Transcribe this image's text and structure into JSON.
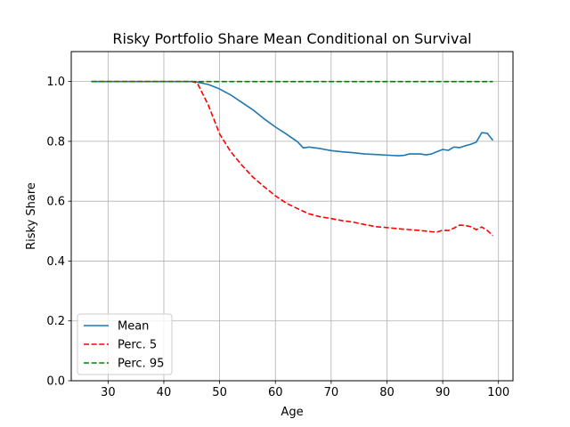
{
  "chart_data": {
    "type": "line",
    "title": "Risky Portfolio Share Mean Conditional on Survival",
    "xlabel": "Age",
    "ylabel": "Risky Share",
    "xlim": [
      23.4,
      102.6
    ],
    "ylim": [
      0.0,
      1.1
    ],
    "xticks": [
      30,
      40,
      50,
      60,
      70,
      80,
      90,
      100
    ],
    "yticks": [
      0.0,
      0.2,
      0.4,
      0.6,
      0.8,
      1.0
    ],
    "ytick_labels": [
      "0.0",
      "0.2",
      "0.4",
      "0.6",
      "0.8",
      "1.0"
    ],
    "grid": true,
    "legend_position": "lower-left",
    "series": [
      {
        "name": "Mean",
        "color": "#1f77b4",
        "dash": "solid",
        "points": [
          [
            27,
            1.0
          ],
          [
            30,
            1.0
          ],
          [
            35,
            1.0
          ],
          [
            40,
            1.0
          ],
          [
            45,
            1.0
          ],
          [
            46,
            0.998
          ],
          [
            48,
            0.99
          ],
          [
            50,
            0.975
          ],
          [
            52,
            0.955
          ],
          [
            54,
            0.93
          ],
          [
            56,
            0.905
          ],
          [
            58,
            0.875
          ],
          [
            60,
            0.848
          ],
          [
            62,
            0.824
          ],
          [
            64,
            0.798
          ],
          [
            65,
            0.778
          ],
          [
            66,
            0.781
          ],
          [
            68,
            0.776
          ],
          [
            70,
            0.769
          ],
          [
            72,
            0.765
          ],
          [
            74,
            0.762
          ],
          [
            76,
            0.758
          ],
          [
            78,
            0.756
          ],
          [
            80,
            0.754
          ],
          [
            82,
            0.752
          ],
          [
            83,
            0.753
          ],
          [
            84,
            0.758
          ],
          [
            86,
            0.758
          ],
          [
            87,
            0.755
          ],
          [
            88,
            0.758
          ],
          [
            89,
            0.766
          ],
          [
            90,
            0.773
          ],
          [
            91,
            0.77
          ],
          [
            92,
            0.781
          ],
          [
            93,
            0.779
          ],
          [
            94,
            0.785
          ],
          [
            95,
            0.79
          ],
          [
            96,
            0.797
          ],
          [
            97,
            0.829
          ],
          [
            98,
            0.827
          ],
          [
            99,
            0.803
          ]
        ]
      },
      {
        "name": "Perc. 5",
        "color": "#ff0000",
        "dash": "dashed",
        "points": [
          [
            27,
            1.0
          ],
          [
            30,
            1.0
          ],
          [
            35,
            1.0
          ],
          [
            40,
            1.0
          ],
          [
            45,
            1.0
          ],
          [
            46,
            0.995
          ],
          [
            48,
            0.92
          ],
          [
            50,
            0.825
          ],
          [
            52,
            0.765
          ],
          [
            54,
            0.72
          ],
          [
            56,
            0.68
          ],
          [
            58,
            0.648
          ],
          [
            60,
            0.618
          ],
          [
            62,
            0.593
          ],
          [
            64,
            0.575
          ],
          [
            66,
            0.558
          ],
          [
            68,
            0.548
          ],
          [
            70,
            0.542
          ],
          [
            72,
            0.535
          ],
          [
            74,
            0.53
          ],
          [
            76,
            0.522
          ],
          [
            78,
            0.515
          ],
          [
            80,
            0.512
          ],
          [
            82,
            0.508
          ],
          [
            84,
            0.505
          ],
          [
            86,
            0.502
          ],
          [
            88,
            0.498
          ],
          [
            89,
            0.497
          ],
          [
            90,
            0.503
          ],
          [
            91,
            0.502
          ],
          [
            92,
            0.51
          ],
          [
            93,
            0.52
          ],
          [
            94,
            0.519
          ],
          [
            95,
            0.515
          ],
          [
            96,
            0.505
          ],
          [
            97,
            0.514
          ],
          [
            98,
            0.502
          ],
          [
            99,
            0.485
          ]
        ]
      },
      {
        "name": "Perc. 95",
        "color": "#008000",
        "dash": "dashed",
        "points": [
          [
            27,
            1.0
          ],
          [
            99,
            1.0
          ]
        ]
      }
    ]
  }
}
